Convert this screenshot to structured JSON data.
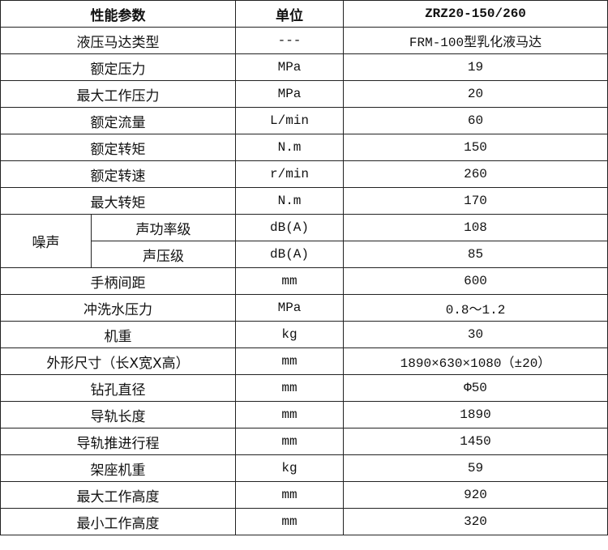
{
  "header": {
    "param": "性能参数",
    "unit": "单位",
    "model": "ZRZ20-150/260"
  },
  "rows": [
    {
      "param": "液压马达类型",
      "unit": "---",
      "value": "FRM-100型乳化液马达"
    },
    {
      "param": "额定压力",
      "unit": "MPa",
      "value": "19"
    },
    {
      "param": "最大工作压力",
      "unit": "MPa",
      "value": "20"
    },
    {
      "param": "额定流量",
      "unit": "L/min",
      "value": "60"
    },
    {
      "param": "额定转矩",
      "unit": "N.m",
      "value": "150"
    },
    {
      "param": "额定转速",
      "unit": "r/min",
      "value": "260"
    },
    {
      "param": "最大转矩",
      "unit": "N.m",
      "value": "170"
    }
  ],
  "noise": {
    "group": "噪声",
    "rows": [
      {
        "param": "声功率级",
        "unit": "dB(A)",
        "value": "108"
      },
      {
        "param": "声压级",
        "unit": "dB(A)",
        "value": "85"
      }
    ]
  },
  "rows2": [
    {
      "param": "手柄间距",
      "unit": "mm",
      "value": "600"
    },
    {
      "param": "冲洗水压力",
      "unit": "MPa",
      "value": "0.8～1.2"
    },
    {
      "param": "机重",
      "unit": "kg",
      "value": "30"
    },
    {
      "param": "外形尺寸（长X宽X高）",
      "unit": "mm",
      "value": "1890×630×1080（±20）"
    },
    {
      "param": "钻孔直径",
      "unit": "mm",
      "value": "Φ50"
    },
    {
      "param": "导轨长度",
      "unit": "mm",
      "value": "1890"
    },
    {
      "param": "导轨推进行程",
      "unit": "mm",
      "value": "1450"
    },
    {
      "param": "架座机重",
      "unit": "kg",
      "value": "59"
    },
    {
      "param": "最大工作高度",
      "unit": "mm",
      "value": "920"
    },
    {
      "param": "最小工作高度",
      "unit": "mm",
      "value": "320"
    }
  ]
}
